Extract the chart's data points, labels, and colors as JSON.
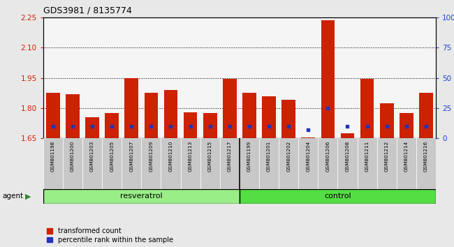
{
  "title": "GDS3981 / 8135774",
  "samples": [
    "GSM801198",
    "GSM801200",
    "GSM801203",
    "GSM801205",
    "GSM801207",
    "GSM801209",
    "GSM801210",
    "GSM801213",
    "GSM801215",
    "GSM801217",
    "GSM801199",
    "GSM801201",
    "GSM801202",
    "GSM801204",
    "GSM801206",
    "GSM801208",
    "GSM801211",
    "GSM801212",
    "GSM801214",
    "GSM801216"
  ],
  "red_values": [
    1.875,
    1.87,
    1.755,
    1.775,
    1.95,
    1.875,
    1.89,
    1.78,
    1.775,
    1.945,
    1.875,
    1.86,
    1.84,
    1.655,
    2.235,
    1.675,
    1.945,
    1.825,
    1.775,
    1.875
  ],
  "blue_pct": [
    10,
    10,
    10,
    10,
    10,
    10,
    10,
    10,
    10,
    10,
    10,
    10,
    10,
    7,
    25,
    10,
    10,
    10,
    10,
    10
  ],
  "ymin": 1.65,
  "ymax": 2.25,
  "yticks_left": [
    1.65,
    1.8,
    1.95,
    2.1,
    2.25
  ],
  "yticks_right_vals": [
    0,
    25,
    50,
    75,
    100
  ],
  "fig_bg": "#e8e8e8",
  "plot_bg": "#f5f5f5",
  "bar_color_red": "#cc2200",
  "bar_color_blue": "#2233bb",
  "resveratrol_color": "#99ee88",
  "control_color": "#55dd44",
  "left_axis_color": "#cc2200",
  "right_axis_color": "#2244cc",
  "group_label_resveratrol": "resveratrol",
  "group_label_control": "control",
  "agent_label": "agent",
  "legend_red": "transformed count",
  "legend_blue": "percentile rank within the sample",
  "n_resveratrol": 10,
  "n_control": 10
}
